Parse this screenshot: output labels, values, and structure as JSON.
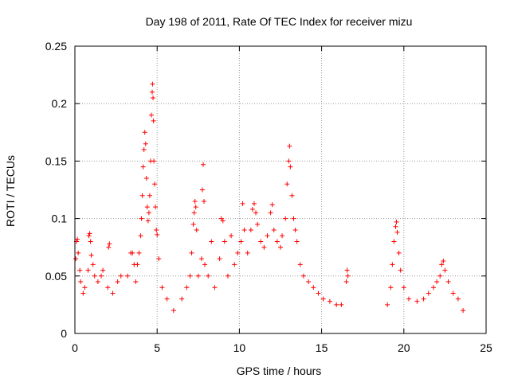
{
  "chart_data": {
    "type": "scatter",
    "title": "Day 198 of 2011, Rate Of TEC Index for receiver mizu",
    "xlabel": "GPS time / hours",
    "ylabel": "ROTI / TECUs",
    "xlim": [
      0,
      25
    ],
    "ylim": [
      0,
      0.25
    ],
    "xticks": [
      0,
      5,
      10,
      15,
      20,
      25
    ],
    "xtick_labels": [
      "0",
      "5",
      "10",
      "15",
      "20",
      "25"
    ],
    "yticks": [
      0,
      0.05,
      0.1,
      0.15,
      0.2,
      0.25
    ],
    "ytick_labels": [
      "0",
      "0.05",
      "0.1",
      "0.15",
      "0.2",
      "0.25"
    ],
    "grid": true,
    "marker": "+",
    "color": "#ff0000",
    "series": [
      {
        "name": "ROTI",
        "points": [
          [
            0.05,
            0.065
          ],
          [
            0.1,
            0.08
          ],
          [
            0.15,
            0.082
          ],
          [
            0.2,
            0.07
          ],
          [
            0.3,
            0.055
          ],
          [
            0.35,
            0.045
          ],
          [
            0.5,
            0.035
          ],
          [
            0.6,
            0.04
          ],
          [
            0.8,
            0.055
          ],
          [
            0.85,
            0.085
          ],
          [
            0.9,
            0.087
          ],
          [
            0.95,
            0.08
          ],
          [
            1.0,
            0.068
          ],
          [
            1.1,
            0.06
          ],
          [
            1.2,
            0.05
          ],
          [
            1.4,
            0.045
          ],
          [
            1.6,
            0.05
          ],
          [
            1.7,
            0.055
          ],
          [
            2.0,
            0.04
          ],
          [
            2.05,
            0.075
          ],
          [
            2.1,
            0.078
          ],
          [
            2.3,
            0.035
          ],
          [
            2.6,
            0.045
          ],
          [
            2.8,
            0.05
          ],
          [
            3.2,
            0.05
          ],
          [
            3.4,
            0.07
          ],
          [
            3.5,
            0.07
          ],
          [
            3.6,
            0.06
          ],
          [
            3.7,
            0.045
          ],
          [
            3.8,
            0.06
          ],
          [
            3.9,
            0.07
          ],
          [
            4.0,
            0.085
          ],
          [
            4.05,
            0.1
          ],
          [
            4.1,
            0.12
          ],
          [
            4.15,
            0.145
          ],
          [
            4.2,
            0.16
          ],
          [
            4.25,
            0.175
          ],
          [
            4.3,
            0.165
          ],
          [
            4.35,
            0.135
          ],
          [
            4.4,
            0.11
          ],
          [
            4.45,
            0.098
          ],
          [
            4.5,
            0.105
          ],
          [
            4.55,
            0.12
          ],
          [
            4.6,
            0.15
          ],
          [
            4.65,
            0.19
          ],
          [
            4.7,
            0.21
          ],
          [
            4.72,
            0.217
          ],
          [
            4.75,
            0.205
          ],
          [
            4.78,
            0.185
          ],
          [
            4.8,
            0.15
          ],
          [
            4.85,
            0.13
          ],
          [
            4.9,
            0.11
          ],
          [
            4.95,
            0.09
          ],
          [
            5.0,
            0.086
          ],
          [
            5.1,
            0.065
          ],
          [
            5.3,
            0.04
          ],
          [
            5.6,
            0.03
          ],
          [
            6.0,
            0.02
          ],
          [
            6.5,
            0.03
          ],
          [
            6.8,
            0.04
          ],
          [
            7.0,
            0.05
          ],
          [
            7.1,
            0.07
          ],
          [
            7.2,
            0.095
          ],
          [
            7.25,
            0.105
          ],
          [
            7.3,
            0.115
          ],
          [
            7.35,
            0.11
          ],
          [
            7.4,
            0.09
          ],
          [
            7.5,
            0.05
          ],
          [
            7.7,
            0.065
          ],
          [
            7.75,
            0.125
          ],
          [
            7.8,
            0.147
          ],
          [
            7.85,
            0.115
          ],
          [
            7.9,
            0.06
          ],
          [
            8.1,
            0.05
          ],
          [
            8.3,
            0.08
          ],
          [
            8.5,
            0.04
          ],
          [
            8.8,
            0.065
          ],
          [
            8.9,
            0.1
          ],
          [
            9.0,
            0.098
          ],
          [
            9.1,
            0.08
          ],
          [
            9.3,
            0.05
          ],
          [
            9.5,
            0.085
          ],
          [
            9.7,
            0.06
          ],
          [
            9.9,
            0.07
          ],
          [
            10.1,
            0.08
          ],
          [
            10.2,
            0.113
          ],
          [
            10.3,
            0.09
          ],
          [
            10.5,
            0.07
          ],
          [
            10.7,
            0.09
          ],
          [
            10.8,
            0.108
          ],
          [
            10.9,
            0.113
          ],
          [
            11.0,
            0.105
          ],
          [
            11.1,
            0.095
          ],
          [
            11.3,
            0.08
          ],
          [
            11.5,
            0.075
          ],
          [
            11.7,
            0.085
          ],
          [
            11.9,
            0.105
          ],
          [
            12.0,
            0.112
          ],
          [
            12.1,
            0.09
          ],
          [
            12.3,
            0.08
          ],
          [
            12.5,
            0.075
          ],
          [
            12.6,
            0.085
          ],
          [
            12.8,
            0.1
          ],
          [
            12.9,
            0.13
          ],
          [
            13.0,
            0.15
          ],
          [
            13.05,
            0.163
          ],
          [
            13.1,
            0.145
          ],
          [
            13.2,
            0.12
          ],
          [
            13.3,
            0.1
          ],
          [
            13.4,
            0.09
          ],
          [
            13.5,
            0.08
          ],
          [
            13.7,
            0.06
          ],
          [
            13.9,
            0.05
          ],
          [
            14.2,
            0.045
          ],
          [
            14.5,
            0.04
          ],
          [
            14.8,
            0.035
          ],
          [
            15.1,
            0.03
          ],
          [
            15.5,
            0.028
          ],
          [
            15.9,
            0.025
          ],
          [
            16.2,
            0.025
          ],
          [
            16.5,
            0.045
          ],
          [
            16.55,
            0.055
          ],
          [
            16.6,
            0.05
          ],
          [
            19.0,
            0.025
          ],
          [
            19.2,
            0.04
          ],
          [
            19.3,
            0.06
          ],
          [
            19.4,
            0.08
          ],
          [
            19.5,
            0.093
          ],
          [
            19.55,
            0.097
          ],
          [
            19.6,
            0.088
          ],
          [
            19.7,
            0.07
          ],
          [
            19.8,
            0.055
          ],
          [
            20.0,
            0.04
          ],
          [
            20.3,
            0.03
          ],
          [
            20.8,
            0.028
          ],
          [
            21.2,
            0.03
          ],
          [
            21.5,
            0.035
          ],
          [
            21.8,
            0.04
          ],
          [
            22.0,
            0.045
          ],
          [
            22.2,
            0.05
          ],
          [
            22.3,
            0.06
          ],
          [
            22.4,
            0.063
          ],
          [
            22.5,
            0.055
          ],
          [
            22.7,
            0.045
          ],
          [
            23.0,
            0.035
          ],
          [
            23.3,
            0.03
          ],
          [
            23.6,
            0.02
          ]
        ]
      }
    ]
  }
}
